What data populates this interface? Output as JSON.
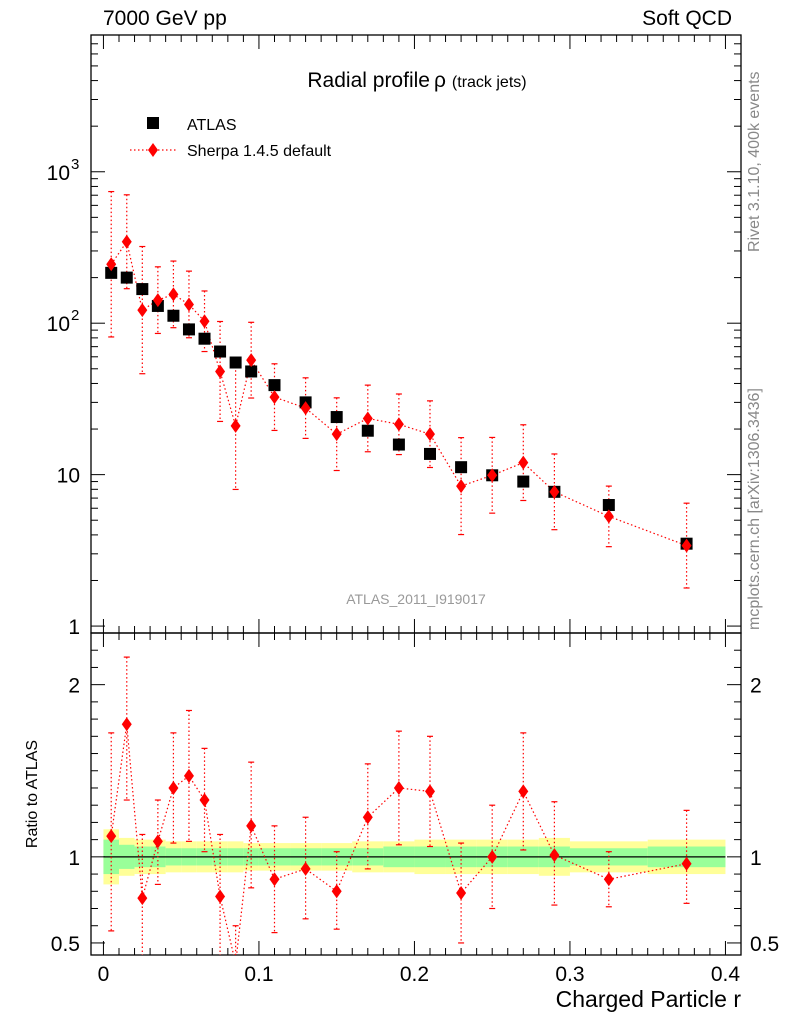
{
  "header": {
    "left": "7000 GeV pp",
    "right": "Soft QCD"
  },
  "side_labels": {
    "rivet": "Rivet 3.1.10,  400k events",
    "mcplots": "mcplots.cern.ch [arXiv:1306.3436]"
  },
  "colors": {
    "data": "#000000",
    "mc": "#ff0000",
    "band_outer": "#ffff99",
    "band_inner": "#99ff99"
  },
  "chart_data": [
    {
      "type": "scatter",
      "panel": "main",
      "title": "Radial profile",
      "title_symbol": "ρ",
      "title_suffix": "(track jets)",
      "watermark": "ATLAS_2011_I919017",
      "yscale": "log",
      "ylim": [
        0.9,
        8000
      ],
      "xlim": [
        -0.008,
        0.41
      ],
      "yticks": [
        {
          "value": 1,
          "label": "1"
        },
        {
          "value": 10,
          "label": "10"
        },
        {
          "value": 100,
          "label": "10",
          "exp": "2"
        },
        {
          "value": 1000,
          "label": "10",
          "exp": "3"
        }
      ],
      "legend_position": "top-left",
      "series": [
        {
          "name": "ATLAS",
          "marker": "square",
          "x": [
            0.005,
            0.015,
            0.025,
            0.035,
            0.045,
            0.055,
            0.065,
            0.075,
            0.085,
            0.095,
            0.11,
            0.13,
            0.15,
            0.17,
            0.19,
            0.21,
            0.23,
            0.25,
            0.27,
            0.29,
            0.325,
            0.375
          ],
          "y": [
            215,
            200,
            168,
            130,
            112,
            91,
            79,
            65,
            55,
            48,
            39,
            30,
            24,
            19.5,
            15.8,
            13.7,
            11.2,
            9.9,
            9.0,
            7.7,
            6.3,
            3.5
          ]
        },
        {
          "name": "Sherpa 1.4.5 default",
          "marker": "diamond",
          "line": "dotted",
          "x": [
            0.005,
            0.015,
            0.025,
            0.035,
            0.045,
            0.055,
            0.065,
            0.075,
            0.085,
            0.095,
            0.11,
            0.13,
            0.15,
            0.17,
            0.19,
            0.21,
            0.23,
            0.25,
            0.27,
            0.29,
            0.325,
            0.375
          ],
          "y": [
            245,
            345,
            122,
            142,
            155,
            133,
            103,
            48,
            21,
            57,
            32.5,
            27.5,
            18.5,
            23.5,
            21.5,
            18.5,
            8.4,
            9.9,
            12.0,
            7.7,
            5.3,
            3.4
          ],
          "yerr": [
            0.48,
            0.31,
            0.42,
            0.22,
            0.22,
            0.22,
            0.2,
            0.33,
            0.42,
            0.25,
            0.22,
            0.2,
            0.24,
            0.22,
            0.2,
            0.22,
            0.32,
            0.25,
            0.25,
            0.25,
            0.2,
            0.28
          ]
        }
      ]
    },
    {
      "type": "scatter",
      "panel": "ratio",
      "ylabel": "Ratio to ATLAS",
      "xlabel": "Charged Particle r",
      "ylim": [
        0.43,
        2.3
      ],
      "xlim": [
        -0.008,
        0.41
      ],
      "yticks": [
        {
          "value": 0.5,
          "label": "0.5"
        },
        {
          "value": 1,
          "label": "1"
        },
        {
          "value": 2,
          "label": "2"
        }
      ],
      "xticks": [
        {
          "value": 0,
          "label": "0"
        },
        {
          "value": 0.1,
          "label": "0.1"
        },
        {
          "value": 0.2,
          "label": "0.2"
        },
        {
          "value": 0.3,
          "label": "0.3"
        },
        {
          "value": 0.4,
          "label": "0.4"
        }
      ],
      "reference_band": {
        "edges": [
          0,
          0.01,
          0.02,
          0.03,
          0.04,
          0.05,
          0.06,
          0.07,
          0.08,
          0.09,
          0.1,
          0.12,
          0.14,
          0.16,
          0.18,
          0.2,
          0.22,
          0.24,
          0.26,
          0.28,
          0.3,
          0.35,
          0.4
        ],
        "outer": [
          0.16,
          0.11,
          0.1,
          0.1,
          0.09,
          0.09,
          0.09,
          0.09,
          0.09,
          0.08,
          0.08,
          0.08,
          0.08,
          0.09,
          0.09,
          0.1,
          0.1,
          0.1,
          0.1,
          0.11,
          0.09,
          0.1
        ],
        "inner": [
          0.1,
          0.07,
          0.06,
          0.06,
          0.05,
          0.05,
          0.05,
          0.05,
          0.05,
          0.05,
          0.05,
          0.05,
          0.05,
          0.05,
          0.06,
          0.06,
          0.06,
          0.06,
          0.06,
          0.06,
          0.05,
          0.06
        ]
      },
      "series": [
        {
          "name": "Sherpa 1.4.5 default / ATLAS",
          "marker": "diamond",
          "line": "dotted",
          "x": [
            0.005,
            0.015,
            0.025,
            0.035,
            0.045,
            0.055,
            0.065,
            0.075,
            0.085,
            0.095,
            0.11,
            0.13,
            0.15,
            0.17,
            0.19,
            0.21,
            0.23,
            0.25,
            0.27,
            0.29,
            0.325,
            0.375
          ],
          "y": [
            1.12,
            1.77,
            0.76,
            1.09,
            1.4,
            1.47,
            1.33,
            0.77,
            0.38,
            1.18,
            0.87,
            0.93,
            0.8,
            1.23,
            1.4,
            1.38,
            0.79,
            1.0,
            1.38,
            1.01,
            0.87,
            0.96
          ],
          "lo": [
            0.57,
            1.33,
            0.38,
            0.84,
            1.08,
            1.09,
            1.03,
            0.42,
            0.22,
            0.82,
            0.56,
            0.64,
            0.58,
            0.93,
            1.07,
            1.06,
            0.5,
            0.7,
            1.04,
            0.72,
            0.71,
            0.73
          ],
          "hi": [
            1.72,
            2.16,
            1.13,
            1.33,
            1.72,
            1.85,
            1.63,
            1.13,
            0.6,
            1.55,
            1.18,
            1.23,
            1.03,
            1.54,
            1.73,
            1.7,
            1.08,
            1.3,
            1.72,
            1.32,
            1.03,
            1.27
          ]
        }
      ]
    }
  ]
}
